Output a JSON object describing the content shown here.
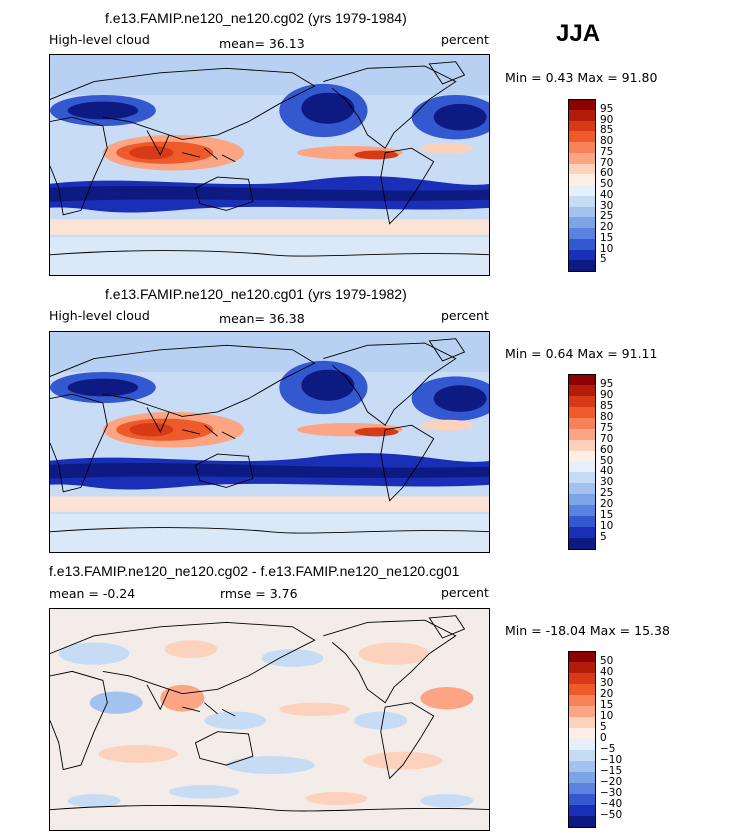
{
  "season": "JJA",
  "panels": [
    {
      "title": "f.e13.FAMIP.ne120_ne120.cg02 (yrs 1979-1984)",
      "variable": "High-level cloud",
      "stat_text": "mean=  36.13",
      "units": "percent",
      "minmax": "Min =   0.43 Max =  91.80"
    },
    {
      "title": "f.e13.FAMIP.ne120_ne120.cg01 (yrs 1979-1982)",
      "variable": "High-level cloud",
      "stat_text": "mean=  36.38",
      "units": "percent",
      "minmax": "Min =   0.64 Max =  91.11"
    },
    {
      "title": "f.e13.FAMIP.ne120_ne120.cg02 - f.e13.FAMIP.ne120_ne120.cg01",
      "mean_text": "mean =  -0.24",
      "rmse_text": "rmse =   3.76",
      "units": "percent",
      "minmax": "Min = -18.04 Max =  15.38"
    }
  ],
  "chart_data": [
    {
      "type": "heatmap",
      "title": "f.e13.FAMIP.ne120_ne120.cg02 (yrs 1979-1984)",
      "field": "High-level cloud",
      "units": "percent",
      "mean": 36.13,
      "min": 0.43,
      "max": 91.8,
      "colorbar_levels": [
        5,
        10,
        15,
        20,
        25,
        30,
        40,
        50,
        60,
        70,
        75,
        80,
        85,
        90,
        95
      ],
      "colorbar_labels": [
        "95",
        "90",
        "85",
        "80",
        "75",
        "70",
        "60",
        "50",
        "40",
        "30",
        "25",
        "20",
        "15",
        "10",
        "5"
      ]
    },
    {
      "type": "heatmap",
      "title": "f.e13.FAMIP.ne120_ne120.cg01 (yrs 1979-1982)",
      "field": "High-level cloud",
      "units": "percent",
      "mean": 36.38,
      "min": 0.64,
      "max": 91.11,
      "colorbar_levels": [
        5,
        10,
        15,
        20,
        25,
        30,
        40,
        50,
        60,
        70,
        75,
        80,
        85,
        90,
        95
      ],
      "colorbar_labels": [
        "95",
        "90",
        "85",
        "80",
        "75",
        "70",
        "60",
        "50",
        "40",
        "30",
        "25",
        "20",
        "15",
        "10",
        "5"
      ]
    },
    {
      "type": "heatmap",
      "title": "f.e13.FAMIP.ne120_ne120.cg02 - f.e13.FAMIP.ne120_ne120.cg01",
      "units": "percent",
      "mean": -0.24,
      "rmse": 3.76,
      "min": -18.04,
      "max": 15.38,
      "colorbar_levels": [
        -50,
        -40,
        -30,
        -20,
        -15,
        -10,
        -5,
        0,
        5,
        10,
        15,
        20,
        30,
        40,
        50
      ],
      "colorbar_labels": [
        "50",
        "40",
        "30",
        "20",
        "15",
        "10",
        "5",
        "0",
        "−5",
        "−10",
        "−15",
        "−20",
        "−30",
        "−40",
        "−50"
      ]
    }
  ],
  "colors": {
    "abs_scale": [
      "#8b0000",
      "#b31b0b",
      "#d63a16",
      "#ef5a2a",
      "#f7825a",
      "#fba584",
      "#fdd2bd",
      "#fdeee6",
      "#e6f0fb",
      "#c6dbf4",
      "#a3c2ee",
      "#7ea4e8",
      "#5b82e0",
      "#3358d0",
      "#1a2fb8",
      "#0d1a82"
    ],
    "diff_scale": [
      "#8b0000",
      "#b31b0b",
      "#d63a16",
      "#ef5a2a",
      "#f7825a",
      "#fba584",
      "#fdd2bd",
      "#fdeee6",
      "#e6f0fb",
      "#c6dbf4",
      "#a3c2ee",
      "#7ea4e8",
      "#5b82e0",
      "#3358d0",
      "#1a2fb8",
      "#0d1a82"
    ]
  }
}
